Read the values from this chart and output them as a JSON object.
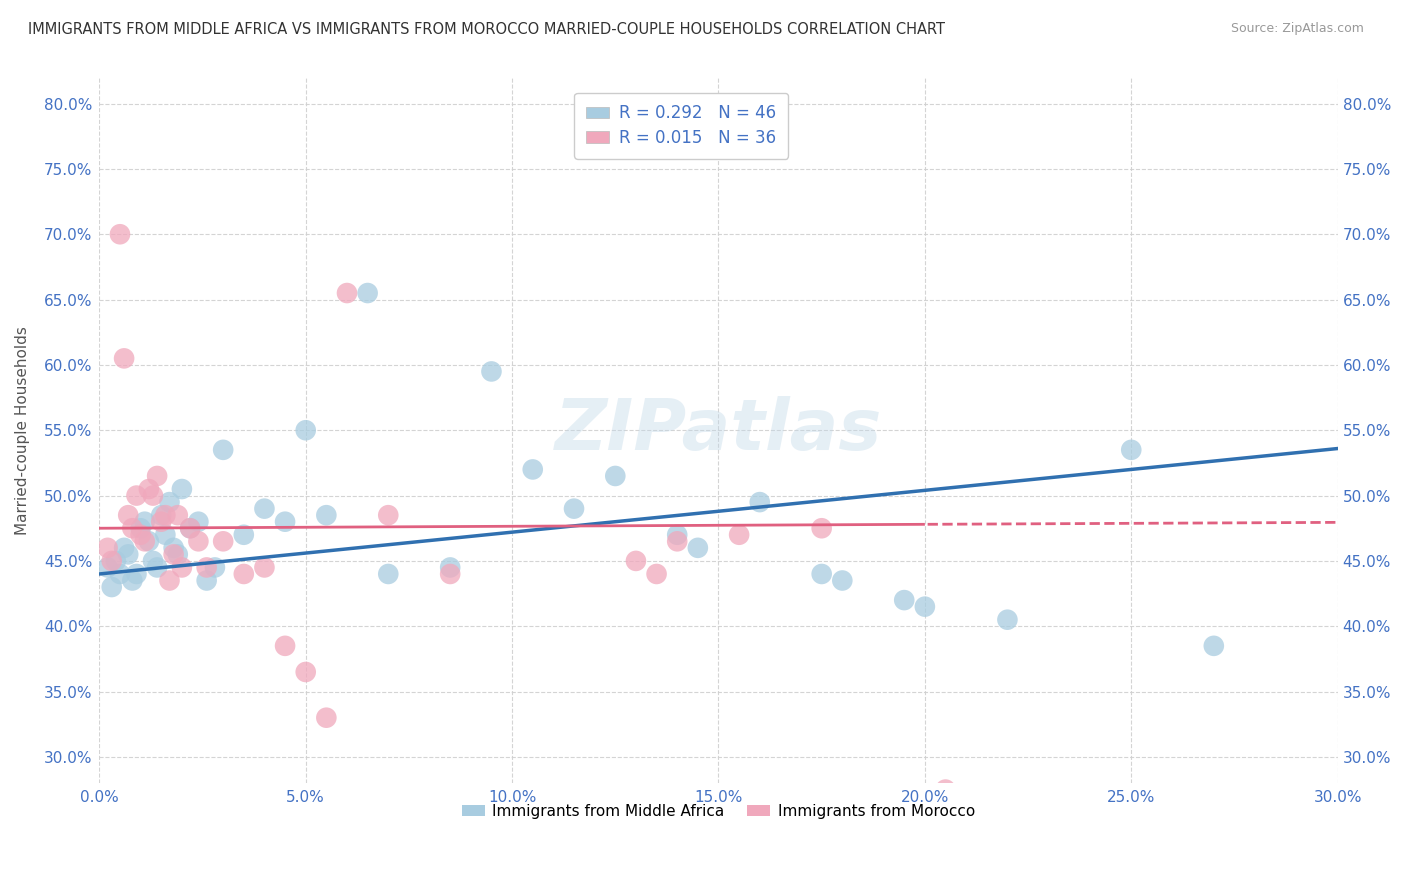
{
  "title": "IMMIGRANTS FROM MIDDLE AFRICA VS IMMIGRANTS FROM MOROCCO MARRIED-COUPLE HOUSEHOLDS CORRELATION CHART",
  "source": "Source: ZipAtlas.com",
  "ylabel": "Married-couple Households",
  "x_min": 0.0,
  "x_max": 30.0,
  "y_min": 28.0,
  "y_max": 82.0,
  "x_ticks": [
    0.0,
    5.0,
    10.0,
    15.0,
    20.0,
    25.0,
    30.0
  ],
  "y_ticks": [
    30.0,
    35.0,
    40.0,
    45.0,
    50.0,
    55.0,
    60.0,
    65.0,
    70.0,
    75.0,
    80.0
  ],
  "blue_label": "Immigrants from Middle Africa",
  "pink_label": "Immigrants from Morocco",
  "blue_R": 0.292,
  "blue_N": 46,
  "pink_R": 0.015,
  "pink_N": 36,
  "blue_color": "#a8cce0",
  "blue_line_color": "#3070b0",
  "pink_color": "#f0a8bc",
  "pink_line_color": "#e06080",
  "blue_scatter_x": [
    0.2,
    0.3,
    0.4,
    0.5,
    0.6,
    0.7,
    0.8,
    0.9,
    1.0,
    1.1,
    1.2,
    1.3,
    1.4,
    1.5,
    1.6,
    1.7,
    1.8,
    1.9,
    2.0,
    2.2,
    2.4,
    2.6,
    2.8,
    3.0,
    3.5,
    4.0,
    4.5,
    5.0,
    5.5,
    6.5,
    7.0,
    8.5,
    9.5,
    10.5,
    11.5,
    12.5,
    14.0,
    14.5,
    16.0,
    17.5,
    18.0,
    19.5,
    20.0,
    22.0,
    25.0,
    27.0
  ],
  "blue_scatter_y": [
    44.5,
    43.0,
    45.0,
    44.0,
    46.0,
    45.5,
    43.5,
    44.0,
    47.5,
    48.0,
    46.5,
    45.0,
    44.5,
    48.5,
    47.0,
    49.5,
    46.0,
    45.5,
    50.5,
    47.5,
    48.0,
    43.5,
    44.5,
    53.5,
    47.0,
    49.0,
    48.0,
    55.0,
    48.5,
    65.5,
    44.0,
    44.5,
    59.5,
    52.0,
    49.0,
    51.5,
    47.0,
    46.0,
    49.5,
    44.0,
    43.5,
    42.0,
    41.5,
    40.5,
    53.5,
    38.5
  ],
  "pink_scatter_x": [
    0.2,
    0.3,
    0.5,
    0.6,
    0.7,
    0.8,
    0.9,
    1.0,
    1.1,
    1.2,
    1.3,
    1.4,
    1.5,
    1.6,
    1.7,
    1.8,
    1.9,
    2.0,
    2.2,
    2.4,
    2.6,
    3.0,
    3.5,
    4.0,
    4.5,
    5.0,
    5.5,
    6.0,
    7.0,
    8.5,
    13.5,
    15.5,
    17.5,
    20.5,
    13.0,
    14.0
  ],
  "pink_scatter_y": [
    46.0,
    45.0,
    70.0,
    60.5,
    48.5,
    47.5,
    50.0,
    47.0,
    46.5,
    50.5,
    50.0,
    51.5,
    48.0,
    48.5,
    43.5,
    45.5,
    48.5,
    44.5,
    47.5,
    46.5,
    44.5,
    46.5,
    44.0,
    44.5,
    38.5,
    36.5,
    33.0,
    65.5,
    48.5,
    44.0,
    44.0,
    47.0,
    47.5,
    27.5,
    45.0,
    46.5
  ],
  "background_color": "#ffffff",
  "grid_color": "#d0d0d0",
  "blue_line_intercept": 44.0,
  "blue_line_slope": 0.32,
  "pink_line_intercept": 47.5,
  "pink_line_slope": 0.015
}
